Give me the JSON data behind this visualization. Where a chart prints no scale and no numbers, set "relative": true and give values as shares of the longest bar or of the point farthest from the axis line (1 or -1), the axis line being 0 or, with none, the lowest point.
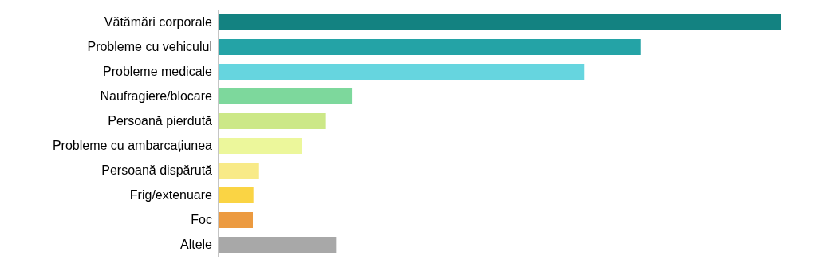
{
  "chart_data": {
    "type": "bar",
    "orientation": "horizontal",
    "relative": true,
    "categories": [
      "Vătămări corporale",
      "Probleme cu vehiculul",
      "Probleme medicale",
      "Naufragiere/blocare",
      "Persoană pierdută",
      "Probleme cu ambarcațiunea",
      "Persoană dispărută",
      "Frig/extenuare",
      "Foc",
      "Altele"
    ],
    "values": [
      1,
      0.75,
      0.65,
      0.237,
      0.191,
      0.148,
      0.072,
      0.062,
      0.061,
      0.209
    ],
    "colors": [
      "#138281",
      "#24a3a6",
      "#66d5df",
      "#7dd89c",
      "#cce887",
      "#ecf79b",
      "#f8ea87",
      "#fad444",
      "#ec9a40",
      "#a8a8a8"
    ],
    "grid": false,
    "legend": false
  }
}
